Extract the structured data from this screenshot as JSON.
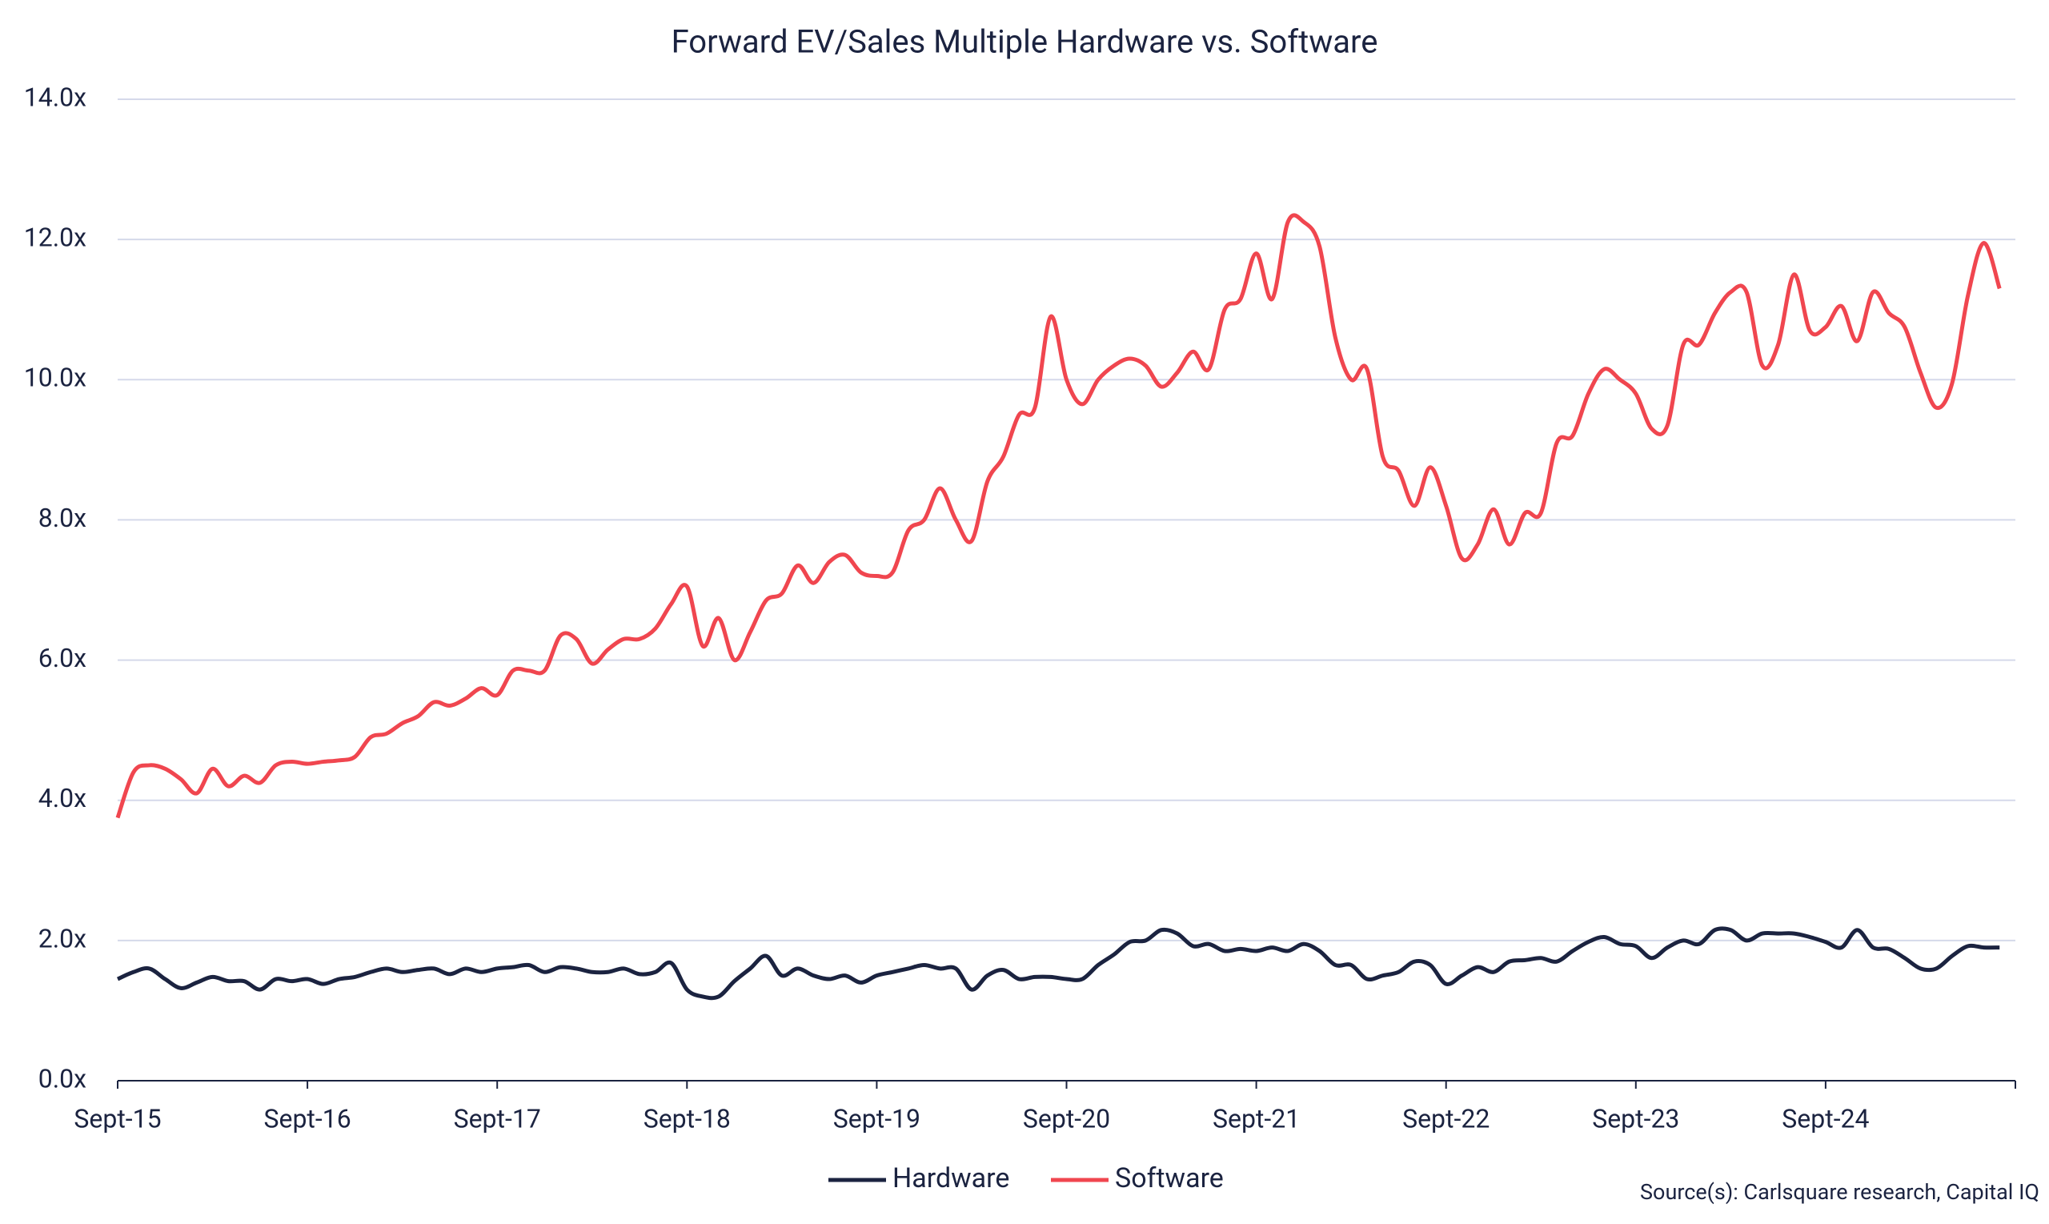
{
  "chart_data": {
    "type": "line",
    "title": "Forward EV/Sales Multiple Hardware vs. Software",
    "source": "Source(s): Carlsquare research, Capital IQ",
    "categories": [
      "Sept-15",
      null,
      null,
      null,
      null,
      null,
      null,
      null,
      null,
      null,
      null,
      null,
      "Sept-16",
      null,
      null,
      null,
      null,
      null,
      null,
      null,
      null,
      null,
      null,
      null,
      "Sept-17",
      null,
      null,
      null,
      null,
      null,
      null,
      null,
      null,
      null,
      null,
      null,
      "Sept-18",
      null,
      null,
      null,
      null,
      null,
      null,
      null,
      null,
      null,
      null,
      null,
      "Sept-19",
      null,
      null,
      null,
      null,
      null,
      null,
      null,
      null,
      null,
      null,
      null,
      "Sept-20",
      null,
      null,
      null,
      null,
      null,
      null,
      null,
      null,
      null,
      null,
      null,
      "Sept-21",
      null,
      null,
      null,
      null,
      null,
      null,
      null,
      null,
      null,
      null,
      null,
      "Sept-22",
      null,
      null,
      null,
      null,
      null,
      null,
      null,
      null,
      null,
      null,
      null,
      "Sept-23",
      null,
      null,
      null,
      null,
      null,
      null,
      null,
      null,
      null,
      null,
      null,
      "Sept-24",
      null,
      null,
      null,
      null,
      null,
      null,
      null,
      null,
      null,
      null,
      null
    ],
    "series": [
      {
        "name": "Hardware",
        "color": "#1b2340",
        "values": [
          1.45,
          1.55,
          1.6,
          1.45,
          1.32,
          1.4,
          1.48,
          1.42,
          1.42,
          1.3,
          1.45,
          1.42,
          1.45,
          1.38,
          1.45,
          1.48,
          1.55,
          1.6,
          1.55,
          1.58,
          1.6,
          1.52,
          1.6,
          1.55,
          1.6,
          1.62,
          1.65,
          1.55,
          1.62,
          1.6,
          1.55,
          1.55,
          1.6,
          1.52,
          1.55,
          1.68,
          1.3,
          1.2,
          1.2,
          1.42,
          1.6,
          1.78,
          1.5,
          1.6,
          1.5,
          1.45,
          1.5,
          1.4,
          1.5,
          1.55,
          1.6,
          1.65,
          1.6,
          1.6,
          1.3,
          1.5,
          1.58,
          1.45,
          1.48,
          1.48,
          1.45,
          1.45,
          1.65,
          1.8,
          1.98,
          2.0,
          2.15,
          2.1,
          1.92,
          1.95,
          1.85,
          1.88,
          1.85,
          1.9,
          1.85,
          1.95,
          1.85,
          1.65,
          1.65,
          1.45,
          1.5,
          1.55,
          1.7,
          1.65,
          1.38,
          1.5,
          1.62,
          1.55,
          1.7,
          1.72,
          1.75,
          1.7,
          1.85,
          1.98,
          2.05,
          1.95,
          1.92,
          1.75,
          1.9,
          2.0,
          1.95,
          2.15,
          2.15,
          2.0,
          2.1,
          2.1,
          2.1,
          2.05,
          1.98,
          1.9,
          2.15,
          1.9,
          1.88,
          1.75,
          1.6,
          1.6,
          1.78,
          1.92,
          1.9,
          1.9
        ]
      },
      {
        "name": "Software",
        "color": "#f0464f",
        "values": [
          3.75,
          4.4,
          4.5,
          4.45,
          4.3,
          4.1,
          4.45,
          4.2,
          4.35,
          4.25,
          4.5,
          4.55,
          4.52,
          4.55,
          4.57,
          4.62,
          4.9,
          4.95,
          5.1,
          5.2,
          5.4,
          5.35,
          5.45,
          5.6,
          5.5,
          5.85,
          5.85,
          5.85,
          6.35,
          6.3,
          5.95,
          6.15,
          6.3,
          6.3,
          6.45,
          6.8,
          7.05,
          6.2,
          6.6,
          6.0,
          6.4,
          6.85,
          6.95,
          7.35,
          7.1,
          7.4,
          7.5,
          7.25,
          7.2,
          7.25,
          7.85,
          8.0,
          8.45,
          8.0,
          7.7,
          8.55,
          8.9,
          9.5,
          9.6,
          10.9,
          10.0,
          9.65,
          10.0,
          10.2,
          10.3,
          10.2,
          9.9,
          10.1,
          10.4,
          10.15,
          11.0,
          11.15,
          11.8,
          11.15,
          12.25,
          12.25,
          11.9,
          10.6,
          10.0,
          10.15,
          8.9,
          8.7,
          8.2,
          8.75,
          8.2,
          7.45,
          7.65,
          8.15,
          7.65,
          8.1,
          8.1,
          9.1,
          9.2,
          9.8,
          10.15,
          10.0,
          9.8,
          9.3,
          9.35,
          10.5,
          10.5,
          10.95,
          11.25,
          11.25,
          10.2,
          10.5,
          11.5,
          10.7,
          10.75,
          11.05,
          10.55,
          11.25,
          10.95,
          10.75,
          10.1,
          9.6,
          9.95,
          11.2,
          11.95,
          11.3
        ]
      }
    ],
    "ylim": [
      0,
      14
    ],
    "yticks": [
      {
        "value": 0,
        "label": "0.0x"
      },
      {
        "value": 2,
        "label": "2.0x"
      },
      {
        "value": 4,
        "label": "4.0x"
      },
      {
        "value": 6,
        "label": "6.0x"
      },
      {
        "value": 8,
        "label": "8.0x"
      },
      {
        "value": 10,
        "label": "10.0x"
      },
      {
        "value": 12,
        "label": "12.0x"
      },
      {
        "value": 14,
        "label": "14.0x"
      }
    ],
    "grid": true
  }
}
